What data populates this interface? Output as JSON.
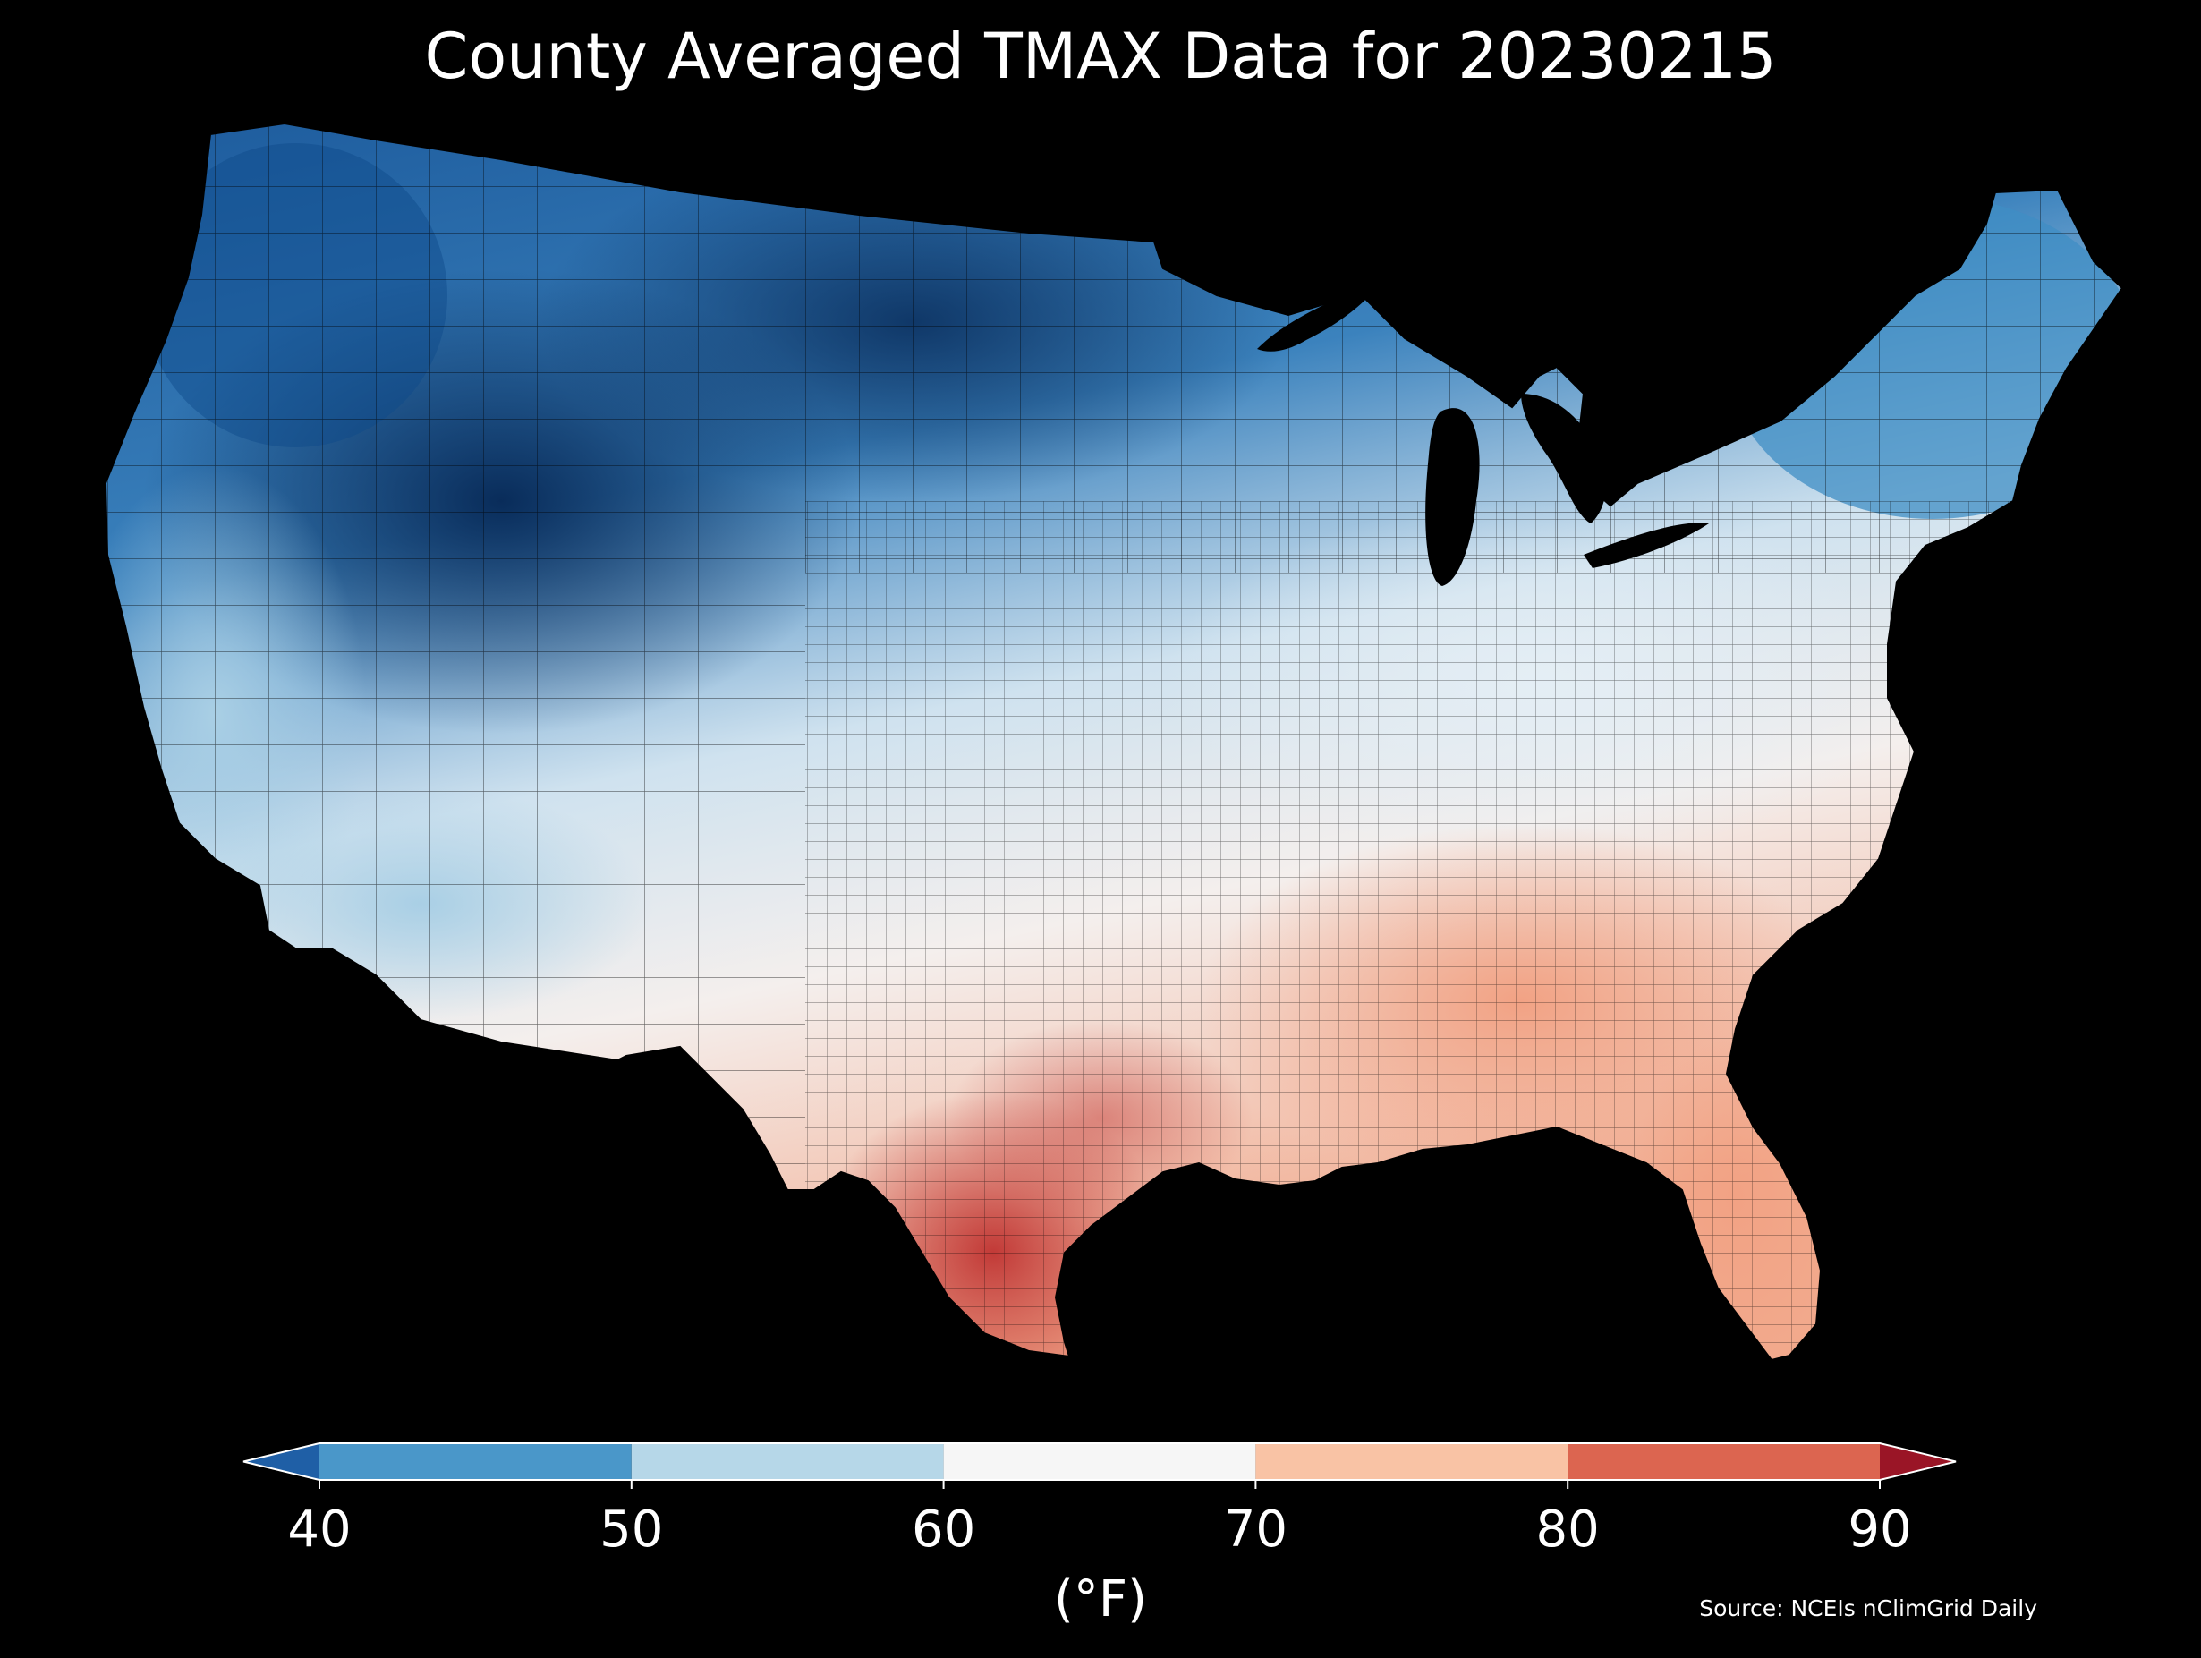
{
  "title": "County Averaged TMAX Data for 20230215",
  "source": "Source: NCEIs nClimGrid Daily",
  "colorbar": {
    "unit": "(°F)",
    "ticks": [
      "40",
      "50",
      "60",
      "70",
      "80",
      "90"
    ],
    "bins": [
      {
        "min": 40,
        "max": 50,
        "color": "#4a97c9"
      },
      {
        "min": 50,
        "max": 60,
        "color": "#b6d7e8"
      },
      {
        "min": 60,
        "max": 70,
        "color": "#f6f6f6"
      },
      {
        "min": 70,
        "max": 80,
        "color": "#f9c3a5"
      },
      {
        "min": 80,
        "max": 90,
        "color": "#dc6550"
      }
    ],
    "under_color": "#1f5fa6",
    "over_color": "#9a1526"
  },
  "map": {
    "region": "contiguous-united-states",
    "level": "county",
    "variable": "TMAX",
    "date": "20230215",
    "background_color": "#000000",
    "county_border_color": "#000000",
    "regions": [
      {
        "id": "pacific-northwest-interior",
        "approx_tmax_f": 38,
        "color": "#0e4a8a"
      },
      {
        "id": "northern-rockies-great-basin",
        "approx_tmax_f": 32,
        "color": "#0a3366"
      },
      {
        "id": "northern-plains",
        "approx_tmax_f": 37,
        "color": "#14518f"
      },
      {
        "id": "upper-midwest",
        "approx_tmax_f": 45,
        "color": "#3a86bf"
      },
      {
        "id": "northeast",
        "approx_tmax_f": 47,
        "color": "#4a97c9"
      },
      {
        "id": "mid-atlantic-ohio-valley",
        "approx_tmax_f": 58,
        "color": "#d8e8f2"
      },
      {
        "id": "california-coast",
        "approx_tmax_f": 52,
        "color": "#9cc8e0"
      },
      {
        "id": "desert-southwest",
        "approx_tmax_f": 55,
        "color": "#b9d8ea"
      },
      {
        "id": "southern-plains",
        "approx_tmax_f": 66,
        "color": "#f4ebe6"
      },
      {
        "id": "southeast",
        "approx_tmax_f": 74,
        "color": "#f5b79b"
      },
      {
        "id": "south-texas",
        "approx_tmax_f": 85,
        "color": "#cf4a3f"
      },
      {
        "id": "florida",
        "approx_tmax_f": 76,
        "color": "#f2a688"
      }
    ]
  }
}
